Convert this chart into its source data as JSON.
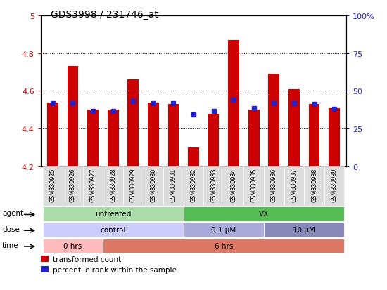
{
  "title": "GDS3998 / 231746_at",
  "samples": [
    "GSM830925",
    "GSM830926",
    "GSM830927",
    "GSM830928",
    "GSM830929",
    "GSM830930",
    "GSM830931",
    "GSM830932",
    "GSM830933",
    "GSM830934",
    "GSM830935",
    "GSM830936",
    "GSM830937",
    "GSM830938",
    "GSM830939"
  ],
  "red_values": [
    4.54,
    4.73,
    4.5,
    4.5,
    4.66,
    4.54,
    4.53,
    4.3,
    4.48,
    4.87,
    4.5,
    4.69,
    4.61,
    4.53,
    4.51
  ],
  "blue_values": [
    4.535,
    4.535,
    4.495,
    4.495,
    4.545,
    4.535,
    4.535,
    4.475,
    4.495,
    4.555,
    4.51,
    4.535,
    4.535,
    4.53,
    4.505
  ],
  "ylim_left": [
    4.2,
    5.0
  ],
  "ylim_right": [
    0,
    100
  ],
  "yticks_left": [
    4.2,
    4.4,
    4.6,
    4.8,
    5.0
  ],
  "ytick_labels_left": [
    "4.2",
    "4.4",
    "4.6",
    "4.8",
    "5"
  ],
  "yticks_right": [
    0,
    25,
    50,
    75,
    100
  ],
  "ytick_labels_right": [
    "0",
    "25",
    "50",
    "75",
    "100%"
  ],
  "bar_color": "#cc0000",
  "marker_color": "#2222cc",
  "bar_bottom": 4.2,
  "agent_labels": [
    {
      "label": "untreated",
      "start": 0,
      "end": 6,
      "color": "#aaddaa"
    },
    {
      "label": "VX",
      "start": 7,
      "end": 14,
      "color": "#55bb55"
    }
  ],
  "dose_labels": [
    {
      "label": "control",
      "start": 0,
      "end": 6,
      "color": "#ccccff"
    },
    {
      "label": "0.1 μM",
      "start": 7,
      "end": 10,
      "color": "#aaaadd"
    },
    {
      "label": "10 μM",
      "start": 11,
      "end": 14,
      "color": "#8888bb"
    }
  ],
  "time_labels": [
    {
      "label": "0 hrs",
      "start": 0,
      "end": 2,
      "color": "#ffbbbb"
    },
    {
      "label": "6 hrs",
      "start": 3,
      "end": 14,
      "color": "#dd7766"
    }
  ],
  "row_labels": [
    "agent",
    "dose",
    "time"
  ],
  "legend_items": [
    {
      "color": "#cc0000",
      "label": "transformed count"
    },
    {
      "color": "#2222cc",
      "label": "percentile rank within the sample"
    }
  ],
  "tick_color_left": "#cc0000",
  "tick_color_right": "#2222cc"
}
